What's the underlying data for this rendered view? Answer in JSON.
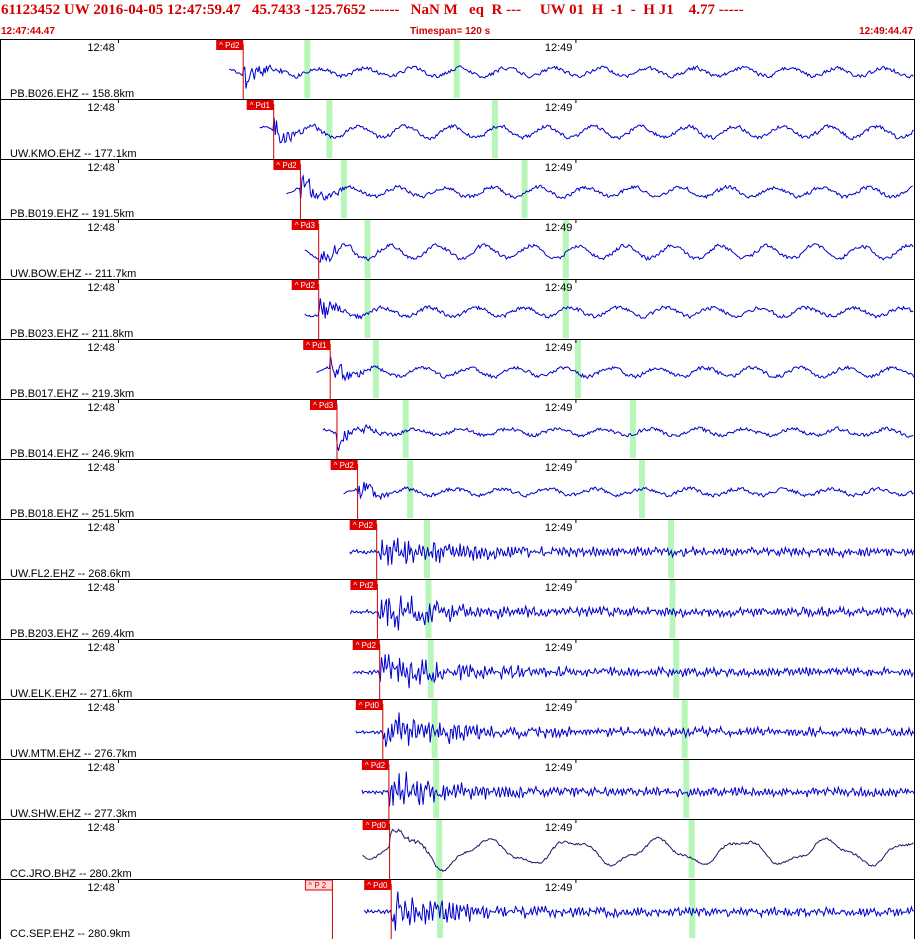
{
  "header": {
    "title": "61123452 UW 2016-04-05 12:47:59.47   45.7433 -125.7652 ------   NaN M   eq  R ---     UW 01  H  -1  -  H J1    4.77 -----",
    "start_time": "12:47:44.47",
    "timespan": "Timespan= 120 s",
    "end_time": "12:49:44.47"
  },
  "colors": {
    "header_text": "#d40000",
    "waveform": "#0000cc",
    "broadband_waveform": "#1a1a66",
    "pick_flag": "#e00000",
    "pick_line": "#cc0000",
    "predicted_phase_bar": "#b8f5b8",
    "separator": "#000000"
  },
  "time_axis": {
    "start_seconds": 0,
    "end_seconds": 120,
    "tick_labels": [
      "12:48",
      "12:49"
    ],
    "tick_seconds": [
      15.53,
      75.53
    ]
  },
  "traces": [
    {
      "label": "PB.B026.EHZ -- 158.8km",
      "pick": "Pd2",
      "pick_s": 31.9,
      "green_s": [
        40.3,
        59.9
      ],
      "noise": 0.25,
      "type": "short"
    },
    {
      "label": "UW.KMO.EHZ -- 177.1km",
      "pick": "Pd1",
      "pick_s": 35.9,
      "green_s": [
        43.2,
        64.9
      ],
      "noise": 0.45,
      "type": "short"
    },
    {
      "label": "PB.B019.EHZ -- 191.5km",
      "pick": "Pd2",
      "pick_s": 39.4,
      "green_s": [
        45.1,
        68.8
      ],
      "noise": 0.35,
      "type": "short"
    },
    {
      "label": "UW.BOW.EHZ -- 211.7km",
      "pick": "Pd3",
      "pick_s": 41.8,
      "green_s": [
        48.2,
        74.2
      ],
      "noise": 0.55,
      "type": "short"
    },
    {
      "label": "PB.B023.EHZ -- 211.8km",
      "pick": "Pd2",
      "pick_s": 41.8,
      "green_s": [
        48.2,
        74.2
      ],
      "noise": 0.3,
      "type": "short"
    },
    {
      "label": "PB.B017.EHZ -- 219.3km",
      "pick": "Pd1",
      "pick_s": 43.3,
      "green_s": [
        49.3,
        75.8
      ],
      "noise": 0.3,
      "type": "short"
    },
    {
      "label": "PB.B014.EHZ -- 246.9km",
      "pick": "Pd3",
      "pick_s": 44.2,
      "green_s": [
        53.2,
        83.0
      ],
      "noise": 0.15,
      "type": "short"
    },
    {
      "label": "PB.B018.EHZ -- 251.5km",
      "pick": "Pd2",
      "pick_s": 46.9,
      "green_s": [
        53.8,
        84.2
      ],
      "noise": 0.15,
      "type": "short"
    },
    {
      "label": "UW.FL2.EHZ -- 268.6km",
      "pick": "Pd2",
      "pick_s": 49.4,
      "green_s": [
        56.0,
        88.0
      ],
      "noise": 0.35,
      "type": "strong"
    },
    {
      "label": "PB.B203.EHZ -- 269.4km",
      "pick": "Pd2",
      "pick_s": 49.5,
      "green_s": [
        56.2,
        88.2
      ],
      "noise": 0.45,
      "type": "strong"
    },
    {
      "label": "UW.ELK.EHZ -- 271.6km",
      "pick": "Pd2",
      "pick_s": 49.8,
      "green_s": [
        56.5,
        88.7
      ],
      "noise": 0.45,
      "type": "strong"
    },
    {
      "label": "UW.MTM.EHZ -- 276.7km",
      "pick": "Pd0",
      "pick_s": 50.2,
      "green_s": [
        57.0,
        89.8
      ],
      "noise": 0.45,
      "type": "strong"
    },
    {
      "label": "UW.SHW.EHZ -- 277.3km",
      "pick": "Pd2",
      "pick_s": 51.0,
      "green_s": [
        57.2,
        90.0
      ],
      "noise": 0.4,
      "type": "strong"
    },
    {
      "label": "CC.JRO.BHZ -- 280.2km",
      "pick": "Pd0",
      "pick_s": 51.1,
      "green_s": [
        57.6,
        90.7
      ],
      "noise": 0.3,
      "type": "broad"
    },
    {
      "label": "CC.SEP.EHZ -- 280.9km",
      "pick": "Pd0",
      "pick_s": 51.3,
      "green_s": [
        57.7,
        90.8
      ],
      "noise": 0.3,
      "type": "strong",
      "extra_pick": "P 2",
      "extra_pick_s": 43.6
    }
  ]
}
